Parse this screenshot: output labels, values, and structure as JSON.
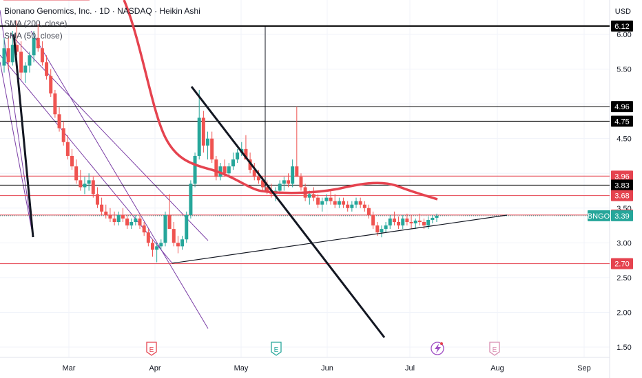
{
  "header": {
    "title": "Bionano Genomics, Inc. · 1D · NASDAQ · Heikin Ashi",
    "sma200": "SMA (200, close)",
    "sma50": "SMA (50, close)",
    "currency": "USD"
  },
  "chart_data": {
    "type": "candlestick",
    "symbol": "BNGO",
    "last_price": "3.39",
    "y_ticks": [
      "1.50",
      "2.00",
      "2.50",
      "3.00",
      "3.50",
      "4.00",
      "4.50",
      "5.00",
      "5.50",
      "6.00"
    ],
    "y_tick_values": [
      1.5,
      2.0,
      2.5,
      3.0,
      3.5,
      4.0,
      4.5,
      5.0,
      5.5,
      6.0
    ],
    "ylim": [
      1.45,
      6.4
    ],
    "x_ticks": [
      "Mar",
      "Apr",
      "May",
      "Jun",
      "Jul",
      "Aug",
      "Sep"
    ],
    "x_tick_dates": [
      "2023-03-01",
      "2023-04-03",
      "2023-05-01",
      "2023-06-01",
      "2023-07-03",
      "2023-08-01",
      "2023-09-01"
    ],
    "price_levels": [
      {
        "label": "6.12",
        "value": 6.12,
        "color": "#000000"
      },
      {
        "label": "4.96",
        "value": 4.96,
        "color": "#000000"
      },
      {
        "label": "4.75",
        "value": 4.75,
        "color": "#000000"
      },
      {
        "label": "3.96",
        "value": 3.96,
        "color": "#e5434f"
      },
      {
        "label": "3.83",
        "value": 3.83,
        "color": "#000000"
      },
      {
        "label": "3.68",
        "value": 3.68,
        "color": "#e5434f"
      },
      {
        "label": "3.40",
        "value": 3.4,
        "color": "#e5434f"
      },
      {
        "label": "2.70",
        "value": 2.7,
        "color": "#e5434f"
      }
    ],
    "candles_ohlc": [
      [
        5.55,
        5.95,
        5.45,
        5.8
      ],
      [
        5.8,
        5.95,
        5.5,
        5.6
      ],
      [
        5.6,
        6.05,
        5.55,
        5.85
      ],
      [
        5.85,
        6.2,
        5.7,
        5.75
      ],
      [
        5.75,
        5.9,
        5.35,
        5.45
      ],
      [
        5.45,
        5.6,
        5.3,
        5.55
      ],
      [
        5.55,
        5.75,
        5.45,
        5.7
      ],
      [
        5.7,
        6.05,
        5.6,
        5.95
      ],
      [
        5.95,
        6.15,
        5.75,
        5.8
      ],
      [
        5.8,
        5.9,
        5.55,
        5.6
      ],
      [
        5.6,
        5.7,
        5.35,
        5.4
      ],
      [
        5.4,
        5.5,
        5.1,
        5.15
      ],
      [
        5.15,
        5.2,
        4.8,
        4.85
      ],
      [
        4.85,
        4.95,
        4.6,
        4.65
      ],
      [
        4.65,
        4.75,
        4.4,
        4.45
      ],
      [
        4.45,
        4.55,
        4.2,
        4.25
      ],
      [
        4.25,
        4.35,
        4.05,
        4.1
      ],
      [
        4.1,
        4.2,
        3.85,
        3.9
      ],
      [
        3.9,
        4.05,
        3.75,
        3.8
      ],
      [
        3.8,
        3.95,
        3.7,
        3.85
      ],
      [
        3.85,
        4.0,
        3.75,
        3.9
      ],
      [
        3.9,
        3.95,
        3.65,
        3.7
      ],
      [
        3.7,
        3.8,
        3.5,
        3.55
      ],
      [
        3.55,
        3.65,
        3.4,
        3.45
      ],
      [
        3.45,
        3.55,
        3.35,
        3.4
      ],
      [
        3.4,
        3.5,
        3.3,
        3.35
      ],
      [
        3.35,
        3.45,
        3.25,
        3.3
      ],
      [
        3.3,
        3.45,
        3.25,
        3.4
      ],
      [
        3.4,
        3.5,
        3.3,
        3.35
      ],
      [
        3.35,
        3.4,
        3.2,
        3.25
      ],
      [
        3.25,
        3.35,
        3.2,
        3.3
      ],
      [
        3.3,
        3.4,
        3.25,
        3.35
      ],
      [
        3.35,
        3.4,
        3.2,
        3.25
      ],
      [
        3.25,
        3.3,
        3.1,
        3.15
      ],
      [
        3.15,
        3.2,
        2.95,
        3.0
      ],
      [
        3.0,
        3.05,
        2.8,
        2.9
      ],
      [
        2.9,
        3.0,
        2.72,
        2.95
      ],
      [
        2.95,
        3.05,
        2.9,
        3.0
      ],
      [
        3.0,
        3.45,
        2.95,
        3.4
      ],
      [
        3.4,
        3.7,
        3.35,
        3.2
      ],
      [
        3.2,
        3.3,
        2.95,
        3.0
      ],
      [
        3.0,
        3.1,
        2.85,
        2.95
      ],
      [
        2.95,
        3.1,
        2.9,
        3.05
      ],
      [
        3.05,
        3.45,
        3.0,
        3.4
      ],
      [
        3.4,
        3.9,
        3.35,
        3.85
      ],
      [
        3.85,
        4.3,
        3.8,
        4.25
      ],
      [
        4.25,
        5.2,
        4.2,
        4.8
      ],
      [
        4.8,
        4.9,
        4.3,
        4.4
      ],
      [
        4.4,
        4.6,
        4.2,
        4.5
      ],
      [
        4.5,
        4.6,
        4.15,
        4.2
      ],
      [
        4.2,
        4.25,
        3.9,
        3.95
      ],
      [
        3.95,
        4.15,
        3.9,
        4.1
      ],
      [
        4.1,
        4.2,
        3.95,
        4.0
      ],
      [
        4.0,
        4.15,
        3.95,
        4.1
      ],
      [
        4.1,
        4.3,
        4.05,
        4.2
      ],
      [
        4.2,
        4.35,
        4.15,
        4.3
      ],
      [
        4.3,
        4.45,
        4.25,
        4.35
      ],
      [
        4.35,
        4.55,
        4.25,
        4.2
      ],
      [
        4.2,
        4.3,
        4.0,
        4.05
      ],
      [
        4.05,
        4.15,
        3.9,
        3.95
      ],
      [
        3.95,
        4.05,
        3.85,
        3.9
      ],
      [
        3.9,
        3.95,
        3.75,
        3.8
      ],
      [
        3.8,
        3.9,
        3.7,
        3.75
      ],
      [
        3.75,
        3.85,
        3.65,
        3.7
      ],
      [
        3.7,
        3.8,
        3.6,
        3.75
      ],
      [
        3.75,
        3.9,
        3.7,
        3.85
      ],
      [
        3.85,
        3.95,
        3.75,
        3.9
      ],
      [
        3.9,
        4.0,
        3.8,
        3.85
      ],
      [
        3.85,
        4.2,
        3.8,
        4.1
      ],
      [
        4.1,
        4.96,
        4.0,
        3.95
      ],
      [
        3.95,
        4.0,
        3.75,
        3.8
      ],
      [
        3.8,
        3.85,
        3.6,
        3.65
      ],
      [
        3.65,
        3.75,
        3.55,
        3.7
      ],
      [
        3.7,
        3.8,
        3.6,
        3.65
      ],
      [
        3.65,
        3.7,
        3.5,
        3.55
      ],
      [
        3.55,
        3.65,
        3.45,
        3.6
      ],
      [
        3.6,
        3.7,
        3.55,
        3.65
      ],
      [
        3.65,
        3.75,
        3.55,
        3.6
      ],
      [
        3.6,
        3.7,
        3.5,
        3.55
      ],
      [
        3.55,
        3.65,
        3.5,
        3.6
      ],
      [
        3.6,
        3.65,
        3.5,
        3.55
      ],
      [
        3.55,
        3.6,
        3.45,
        3.5
      ],
      [
        3.5,
        3.6,
        3.45,
        3.55
      ],
      [
        3.55,
        3.65,
        3.5,
        3.6
      ],
      [
        3.6,
        3.65,
        3.5,
        3.55
      ],
      [
        3.55,
        3.6,
        3.45,
        3.5
      ],
      [
        3.5,
        3.55,
        3.35,
        3.4
      ],
      [
        3.4,
        3.45,
        3.2,
        3.25
      ],
      [
        3.25,
        3.3,
        3.1,
        3.15
      ],
      [
        3.15,
        3.25,
        3.08,
        3.2
      ],
      [
        3.2,
        3.3,
        3.15,
        3.25
      ],
      [
        3.25,
        3.4,
        3.2,
        3.35
      ],
      [
        3.35,
        3.45,
        3.25,
        3.3
      ],
      [
        3.3,
        3.38,
        3.2,
        3.25
      ],
      [
        3.25,
        3.4,
        3.2,
        3.35
      ],
      [
        3.35,
        3.42,
        3.25,
        3.3
      ],
      [
        3.3,
        3.4,
        3.2,
        3.28
      ],
      [
        3.28,
        3.35,
        3.2,
        3.32
      ],
      [
        3.32,
        3.42,
        3.25,
        3.3
      ],
      [
        3.3,
        3.35,
        3.2,
        3.25
      ],
      [
        3.25,
        3.38,
        3.2,
        3.33
      ],
      [
        3.33,
        3.4,
        3.28,
        3.36
      ],
      [
        3.36,
        3.42,
        3.3,
        3.39
      ]
    ],
    "annotations": [
      "E",
      "E",
      "E"
    ]
  },
  "colors": {
    "up": "#26a69a",
    "down": "#ef5350",
    "sma": "#e5434f",
    "trend": "#131722",
    "fan": "#7b3fa6"
  }
}
